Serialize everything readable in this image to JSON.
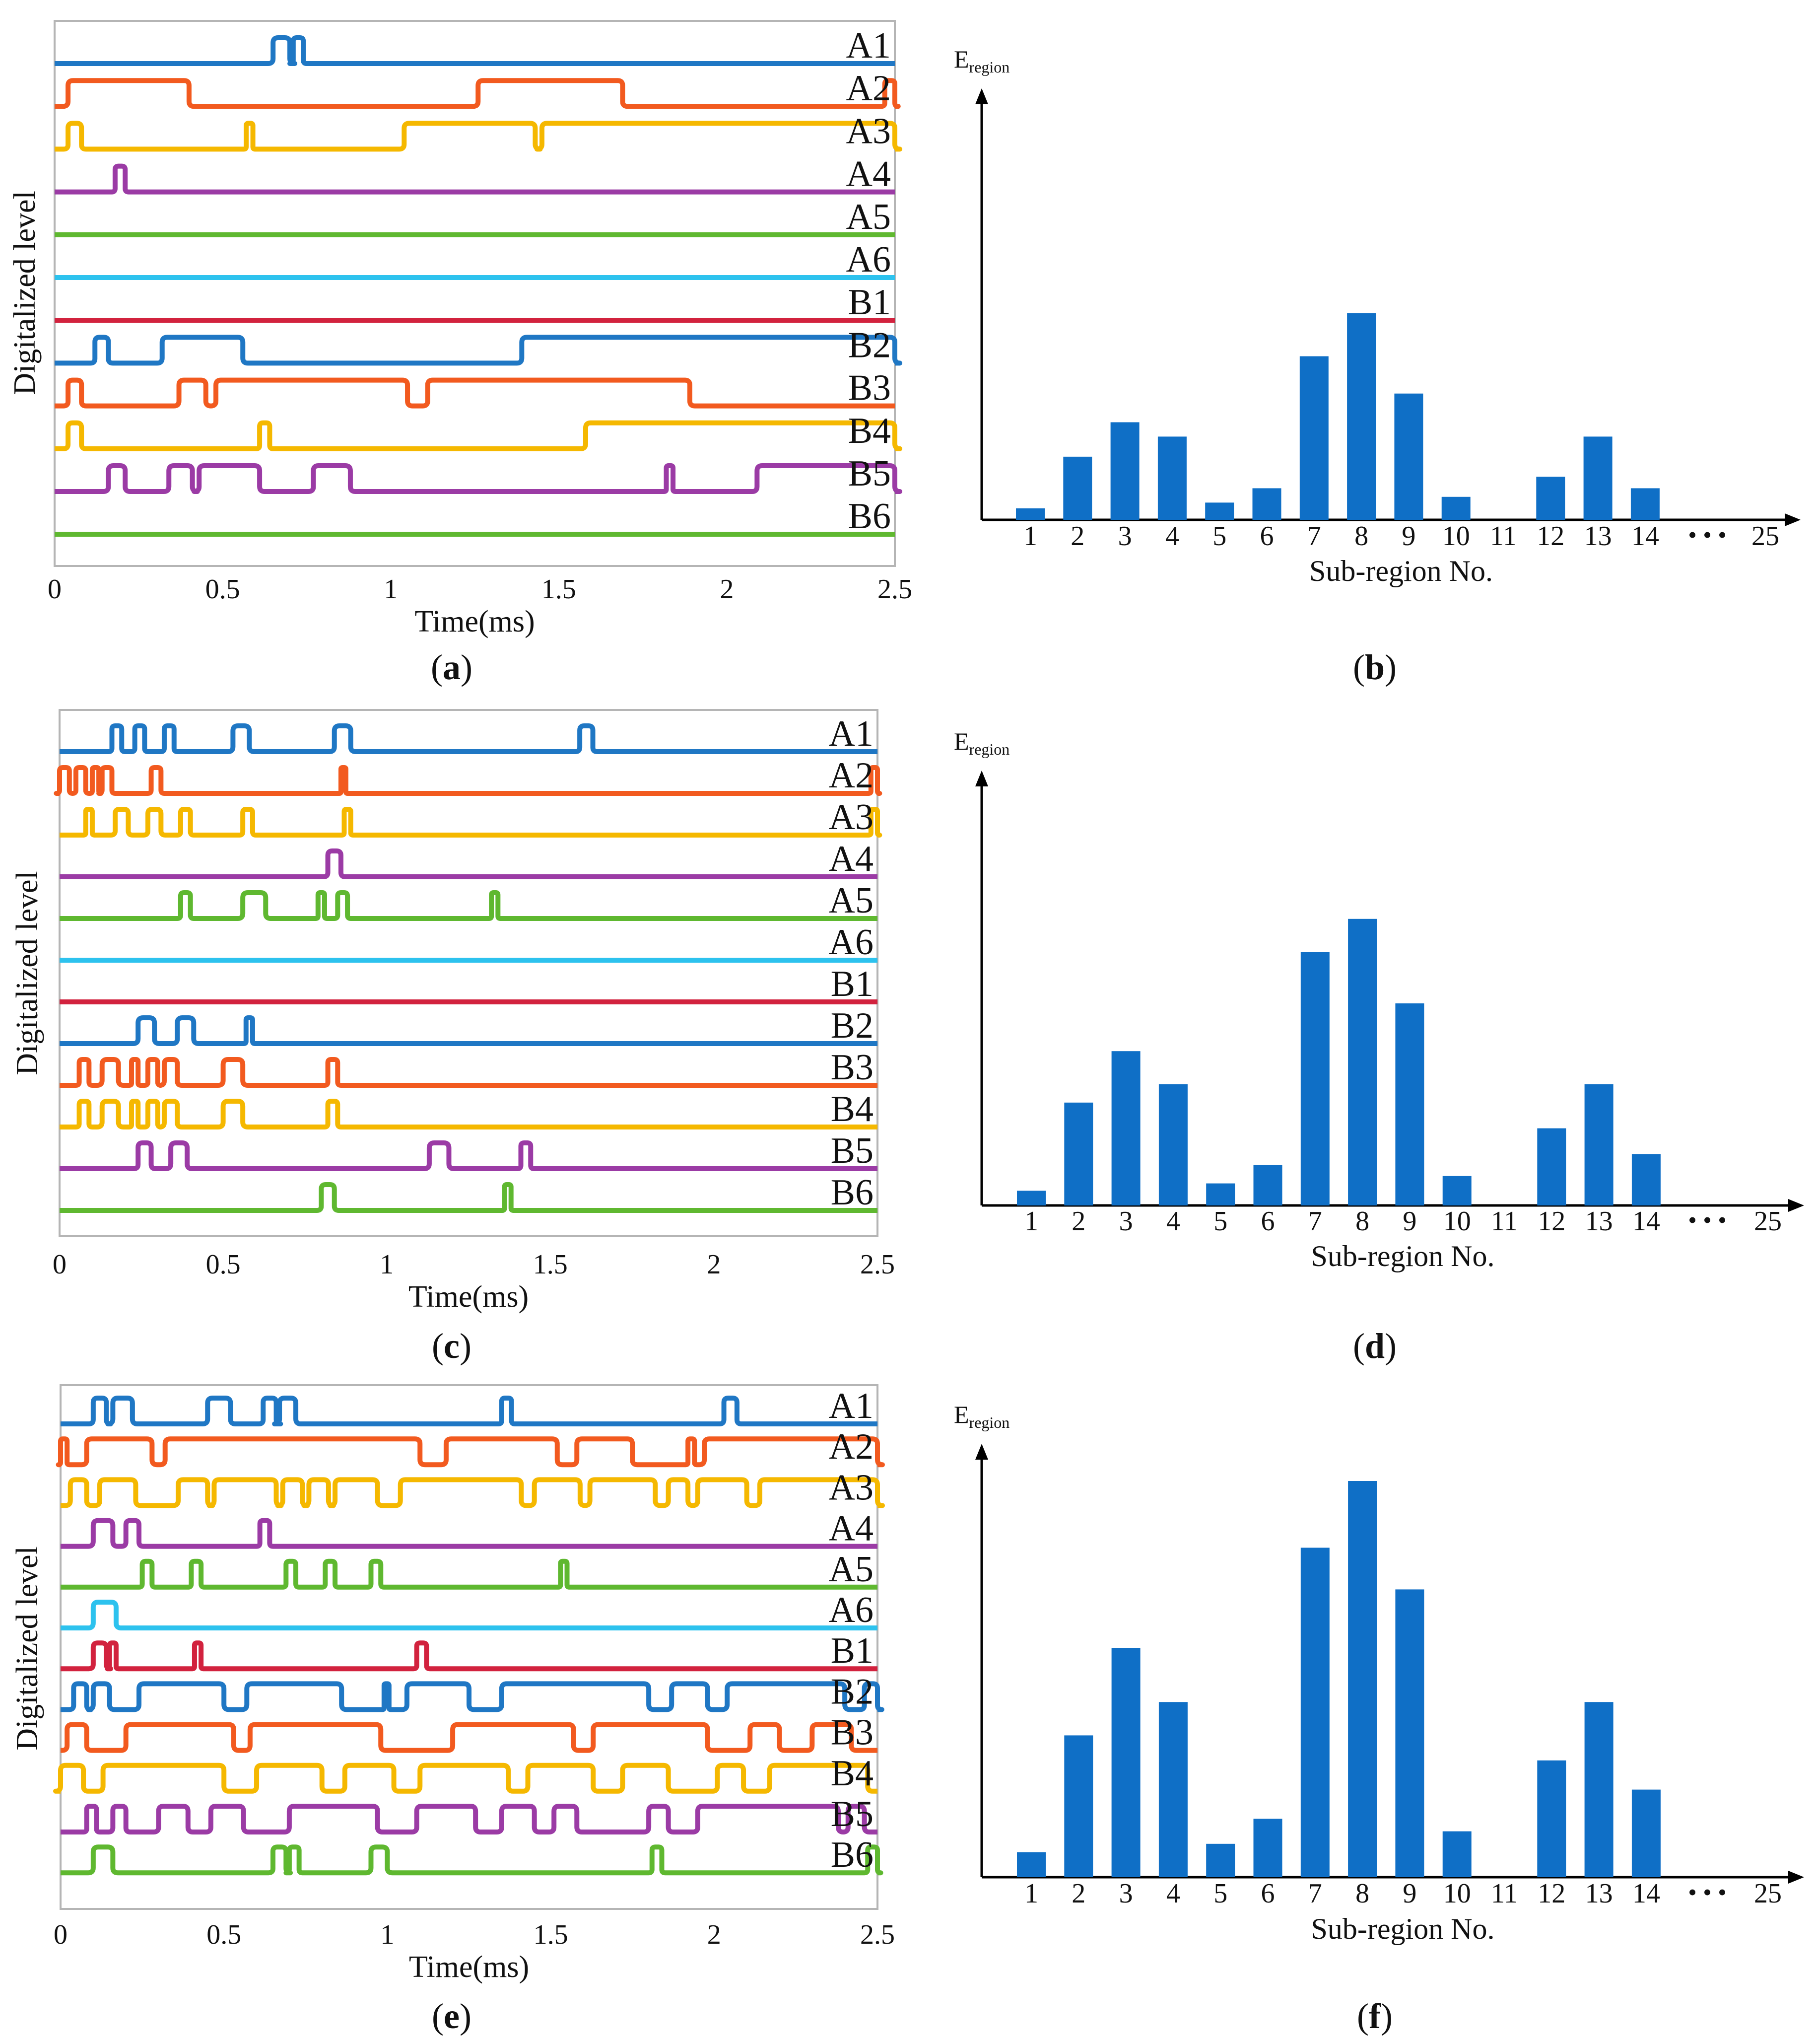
{
  "chart_data": [
    {
      "panel": "a",
      "type": "line",
      "panel_label": "a",
      "xlabel": "Time(ms)",
      "ylabel": "Digitalized  level",
      "xlim": [
        0,
        2.5
      ],
      "xticks": [
        "0",
        "0.5",
        "1",
        "1.5",
        "2",
        "2.5"
      ],
      "series": [
        {
          "name": "A1",
          "color": "#1f77c4",
          "pulses": [
            [
              0.65,
              0.7
            ],
            [
              0.71,
              0.74
            ]
          ]
        },
        {
          "name": "A2",
          "color": "#f25a1f",
          "pulses": [
            [
              0.04,
              0.4
            ],
            [
              1.26,
              1.69
            ],
            [
              2.47,
              2.5
            ]
          ]
        },
        {
          "name": "A3",
          "color": "#f5b800",
          "pulses": [
            [
              0.04,
              0.08
            ],
            [
              0.57,
              0.59
            ],
            [
              1.04,
              1.43
            ],
            [
              1.45,
              2.5
            ]
          ]
        },
        {
          "name": "A4",
          "color": "#9b3ba5",
          "pulses": [
            [
              0.18,
              0.21
            ]
          ]
        },
        {
          "name": "A5",
          "color": "#5fb830",
          "pulses": []
        },
        {
          "name": "A6",
          "color": "#2dc2ee",
          "pulses": []
        },
        {
          "name": "B1",
          "color": "#d2223e",
          "pulses": []
        },
        {
          "name": "B2",
          "color": "#1f77c4",
          "pulses": [
            [
              0.12,
              0.16
            ],
            [
              0.32,
              0.56
            ],
            [
              1.39,
              2.5
            ]
          ]
        },
        {
          "name": "B3",
          "color": "#f25a1f",
          "pulses": [
            [
              0.04,
              0.08
            ],
            [
              0.37,
              0.45
            ],
            [
              0.48,
              1.05
            ],
            [
              1.11,
              1.89
            ]
          ]
        },
        {
          "name": "B4",
          "color": "#f5b800",
          "pulses": [
            [
              0.04,
              0.08
            ],
            [
              0.61,
              0.64
            ],
            [
              1.58,
              2.5
            ]
          ]
        },
        {
          "name": "B5",
          "color": "#9b3ba5",
          "pulses": [
            [
              0.16,
              0.21
            ],
            [
              0.34,
              0.41
            ],
            [
              0.43,
              0.61
            ],
            [
              0.77,
              0.88
            ],
            [
              1.82,
              1.84
            ],
            [
              2.09,
              2.5
            ]
          ]
        },
        {
          "name": "B6",
          "color": "#5fb830",
          "pulses": []
        }
      ]
    },
    {
      "panel": "b",
      "type": "bar",
      "panel_label": "b",
      "ylabel_main": "E",
      "ylabel_sub": "region",
      "xlabel": "Sub-region No.",
      "categories": [
        "1",
        "2",
        "3",
        "4",
        "5",
        "6",
        "7",
        "8",
        "9",
        "10",
        "11",
        "12",
        "13",
        "14"
      ],
      "values": [
        4,
        22,
        34,
        29,
        6,
        11,
        57,
        72,
        44,
        8,
        0,
        15,
        29,
        11
      ],
      "ylim": [
        0,
        100
      ],
      "dots": "• • •",
      "last_category": "25",
      "bar_color": "#0f6fc6"
    },
    {
      "panel": "c",
      "type": "line",
      "panel_label": "c",
      "xlabel": "Time(ms)",
      "ylabel": "Digitalized  level",
      "xlim": [
        0,
        2.5
      ],
      "xticks": [
        "0",
        "0.5",
        "1",
        "1.5",
        "2",
        "2.5"
      ],
      "series": [
        {
          "name": "A1",
          "color": "#1f77c4",
          "pulses": [
            [
              0.16,
              0.19
            ],
            [
              0.23,
              0.26
            ],
            [
              0.32,
              0.35
            ],
            [
              0.53,
              0.58
            ],
            [
              0.84,
              0.89
            ],
            [
              1.59,
              1.63
            ]
          ]
        },
        {
          "name": "A2",
          "color": "#f25a1f",
          "pulses": [
            [
              0.0,
              0.03
            ],
            [
              0.05,
              0.08
            ],
            [
              0.1,
              0.12
            ],
            [
              0.13,
              0.16
            ],
            [
              0.28,
              0.31
            ],
            [
              0.86,
              0.87
            ],
            [
              2.48,
              2.5
            ]
          ]
        },
        {
          "name": "A3",
          "color": "#f5b800",
          "pulses": [
            [
              0.08,
              0.1
            ],
            [
              0.17,
              0.21
            ],
            [
              0.27,
              0.31
            ],
            [
              0.37,
              0.4
            ],
            [
              0.56,
              0.59
            ],
            [
              0.87,
              0.89
            ],
            [
              2.48,
              2.5
            ]
          ]
        },
        {
          "name": "A4",
          "color": "#9b3ba5",
          "pulses": [
            [
              0.82,
              0.86
            ]
          ]
        },
        {
          "name": "A5",
          "color": "#5fb830",
          "pulses": [
            [
              0.37,
              0.4
            ],
            [
              0.56,
              0.63
            ],
            [
              0.79,
              0.81
            ],
            [
              0.85,
              0.88
            ],
            [
              1.32,
              1.34
            ]
          ]
        },
        {
          "name": "A6",
          "color": "#2dc2ee",
          "pulses": []
        },
        {
          "name": "B1",
          "color": "#d2223e",
          "pulses": []
        },
        {
          "name": "B2",
          "color": "#1f77c4",
          "pulses": [
            [
              0.24,
              0.29
            ],
            [
              0.36,
              0.41
            ],
            [
              0.57,
              0.59
            ]
          ]
        },
        {
          "name": "B3",
          "color": "#f25a1f",
          "pulses": [
            [
              0.06,
              0.09
            ],
            [
              0.13,
              0.18
            ],
            [
              0.22,
              0.24
            ],
            [
              0.27,
              0.3
            ],
            [
              0.32,
              0.36
            ],
            [
              0.5,
              0.56
            ],
            [
              0.82,
              0.85
            ]
          ]
        },
        {
          "name": "B4",
          "color": "#f5b800",
          "pulses": [
            [
              0.06,
              0.09
            ],
            [
              0.13,
              0.18
            ],
            [
              0.22,
              0.24
            ],
            [
              0.27,
              0.3
            ],
            [
              0.32,
              0.36
            ],
            [
              0.5,
              0.56
            ],
            [
              0.82,
              0.85
            ]
          ]
        },
        {
          "name": "B5",
          "color": "#9b3ba5",
          "pulses": [
            [
              0.24,
              0.28
            ],
            [
              0.34,
              0.39
            ],
            [
              1.13,
              1.19
            ],
            [
              1.41,
              1.44
            ]
          ]
        },
        {
          "name": "B6",
          "color": "#5fb830",
          "pulses": [
            [
              0.8,
              0.84
            ],
            [
              1.36,
              1.38
            ]
          ]
        }
      ]
    },
    {
      "panel": "d",
      "type": "bar",
      "panel_label": "d",
      "ylabel_main": "E",
      "ylabel_sub": "region",
      "xlabel": "Sub-region No.",
      "categories": [
        "1",
        "2",
        "3",
        "4",
        "5",
        "6",
        "7",
        "8",
        "9",
        "10",
        "11",
        "12",
        "13",
        "14"
      ],
      "values": [
        4,
        28,
        42,
        33,
        6,
        11,
        69,
        78,
        55,
        8,
        0,
        21,
        33,
        14
      ],
      "ylim": [
        0,
        100
      ],
      "dots": "• • •",
      "last_category": "25",
      "bar_color": "#0f6fc6"
    },
    {
      "panel": "e",
      "type": "line",
      "panel_label": "e",
      "xlabel": "Time(ms)",
      "ylabel": "Digitalized  level",
      "xlim": [
        0,
        2.5
      ],
      "xticks": [
        "0",
        "0.5",
        "1",
        "1.5",
        "2",
        "2.5"
      ],
      "series": [
        {
          "name": "A1",
          "color": "#1f77c4",
          "pulses": [
            [
              0.1,
              0.14
            ],
            [
              0.16,
              0.22
            ],
            [
              0.45,
              0.52
            ],
            [
              0.62,
              0.66
            ],
            [
              0.67,
              0.72
            ],
            [
              1.35,
              1.38
            ],
            [
              2.03,
              2.07
            ]
          ]
        },
        {
          "name": "A2",
          "color": "#f25a1f",
          "pulses": [
            [
              0.0,
              0.02
            ],
            [
              0.08,
              0.28
            ],
            [
              0.32,
              1.1
            ],
            [
              1.18,
              1.52
            ],
            [
              1.58,
              1.75
            ],
            [
              1.92,
              1.94
            ],
            [
              1.97,
              2.5
            ]
          ]
        },
        {
          "name": "A3",
          "color": "#f5b800",
          "pulses": [
            [
              0.03,
              0.08
            ],
            [
              0.12,
              0.23
            ],
            [
              0.36,
              0.45
            ],
            [
              0.47,
              0.66
            ],
            [
              0.68,
              0.74
            ],
            [
              0.76,
              0.82
            ],
            [
              0.84,
              0.97
            ],
            [
              1.04,
              1.41
            ],
            [
              1.45,
              1.59
            ],
            [
              1.62,
              1.82
            ],
            [
              1.86,
              1.92
            ],
            [
              1.95,
              2.1
            ],
            [
              2.14,
              2.5
            ]
          ]
        },
        {
          "name": "A4",
          "color": "#9b3ba5",
          "pulses": [
            [
              0.1,
              0.16
            ],
            [
              0.2,
              0.24
            ],
            [
              0.61,
              0.64
            ]
          ]
        },
        {
          "name": "A5",
          "color": "#5fb830",
          "pulses": [
            [
              0.25,
              0.28
            ],
            [
              0.4,
              0.43
            ],
            [
              0.69,
              0.72
            ],
            [
              0.81,
              0.84
            ],
            [
              0.95,
              0.98
            ],
            [
              1.53,
              1.55
            ]
          ]
        },
        {
          "name": "A6",
          "color": "#2dc2ee",
          "pulses": [
            [
              0.1,
              0.17
            ]
          ]
        },
        {
          "name": "B1",
          "color": "#d2223e",
          "pulses": [
            [
              0.1,
              0.14
            ],
            [
              0.15,
              0.17
            ],
            [
              0.41,
              0.43
            ],
            [
              1.09,
              1.12
            ]
          ]
        },
        {
          "name": "B2",
          "color": "#1f77c4",
          "pulses": [
            [
              0.04,
              0.08
            ],
            [
              0.1,
              0.15
            ],
            [
              0.24,
              0.5
            ],
            [
              0.57,
              0.86
            ],
            [
              0.99,
              0.99
            ],
            [
              1.06,
              1.25
            ],
            [
              1.35,
              1.8
            ],
            [
              1.87,
              1.98
            ],
            [
              2.04,
              2.4
            ],
            [
              2.46,
              2.5
            ]
          ]
        },
        {
          "name": "B3",
          "color": "#f25a1f",
          "pulses": [
            [
              0.02,
              0.08
            ],
            [
              0.2,
              0.53
            ],
            [
              0.58,
              0.98
            ],
            [
              1.2,
              1.57
            ],
            [
              1.63,
              1.98
            ],
            [
              2.11,
              2.2
            ],
            [
              2.3,
              2.42
            ]
          ]
        },
        {
          "name": "B4",
          "color": "#f5b800",
          "pulses": [
            [
              0.0,
              0.07
            ],
            [
              0.13,
              0.5
            ],
            [
              0.6,
              0.8
            ],
            [
              0.87,
              1.02
            ],
            [
              1.1,
              1.37
            ],
            [
              1.43,
              1.63
            ],
            [
              1.72,
              1.86
            ],
            [
              2.01,
              2.09
            ],
            [
              2.17,
              2.47
            ]
          ]
        },
        {
          "name": "B5",
          "color": "#9b3ba5",
          "pulses": [
            [
              0.08,
              0.11
            ],
            [
              0.16,
              0.2
            ],
            [
              0.3,
              0.39
            ],
            [
              0.46,
              0.56
            ],
            [
              0.7,
              0.97
            ],
            [
              1.09,
              1.27
            ],
            [
              1.35,
              1.45
            ],
            [
              1.51,
              1.58
            ],
            [
              1.8,
              1.86
            ],
            [
              1.95,
              2.38
            ],
            [
              2.41,
              2.46
            ]
          ]
        },
        {
          "name": "B6",
          "color": "#5fb830",
          "pulses": [
            [
              0.1,
              0.16
            ],
            [
              0.65,
              0.69
            ],
            [
              0.7,
              0.73
            ],
            [
              0.95,
              1.0
            ],
            [
              1.81,
              1.84
            ],
            [
              2.47,
              2.5
            ]
          ]
        }
      ]
    },
    {
      "panel": "f",
      "type": "bar",
      "panel_label": "f",
      "ylabel_main": "E",
      "ylabel_sub": "region",
      "xlabel": "Sub-region No.",
      "categories": [
        "1",
        "2",
        "3",
        "4",
        "5",
        "6",
        "7",
        "8",
        "9",
        "10",
        "11",
        "12",
        "13",
        "14"
      ],
      "values": [
        6,
        34,
        55,
        42,
        8,
        14,
        79,
        95,
        69,
        11,
        0,
        28,
        42,
        21
      ],
      "ylim": [
        0,
        100
      ],
      "dots": "• • •",
      "last_category": "25",
      "bar_color": "#0f6fc6"
    }
  ]
}
